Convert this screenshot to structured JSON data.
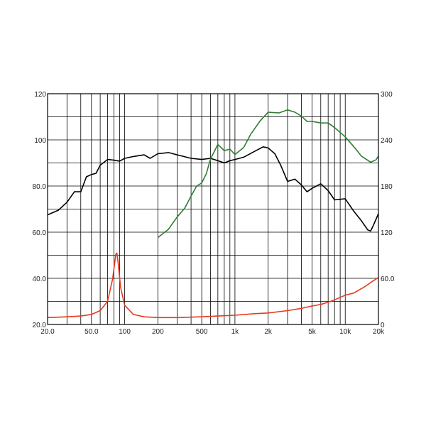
{
  "chart_data": {
    "type": "line",
    "title": "",
    "xlabel": "",
    "ylabel": "",
    "x_scale": "log",
    "xlim": [
      20,
      20000
    ],
    "ylim": [
      20,
      120
    ],
    "y2lim": [
      0,
      300
    ],
    "grid": true,
    "x_tick_labels": [
      {
        "value": 20,
        "label": "20.0"
      },
      {
        "value": 50,
        "label": "50.0"
      },
      {
        "value": 100,
        "label": "100"
      },
      {
        "value": 200,
        "label": "200"
      },
      {
        "value": 500,
        "label": "500"
      },
      {
        "value": 1000,
        "label": "1k"
      },
      {
        "value": 2000,
        "label": "2k"
      },
      {
        "value": 5000,
        "label": "5k"
      },
      {
        "value": 10000,
        "label": "10k"
      },
      {
        "value": 20000,
        "label": "20k"
      }
    ],
    "y_tick_labels": [
      {
        "value": 20,
        "label": "20.0"
      },
      {
        "value": 40,
        "label": "40.0"
      },
      {
        "value": 60,
        "label": "60.0"
      },
      {
        "value": 80,
        "label": "80.0"
      },
      {
        "value": 100,
        "label": "100"
      },
      {
        "value": 120,
        "label": "120"
      }
    ],
    "y2_tick_labels": [
      {
        "value": 0,
        "label": "0"
      },
      {
        "value": 60,
        "label": "60.0"
      },
      {
        "value": 120,
        "label": "120"
      },
      {
        "value": 180,
        "label": "180"
      },
      {
        "value": 240,
        "label": "240"
      },
      {
        "value": 300,
        "label": "300"
      }
    ],
    "series": [
      {
        "color": "#000000",
        "axis": "left",
        "points": [
          [
            20,
            67.5
          ],
          [
            25,
            69.5
          ],
          [
            30,
            73
          ],
          [
            35,
            77.5
          ],
          [
            40,
            77.5
          ],
          [
            45,
            84
          ],
          [
            50,
            85
          ],
          [
            55,
            85.5
          ],
          [
            60,
            89
          ],
          [
            70,
            91.5
          ],
          [
            80,
            91.2
          ],
          [
            90,
            90.8
          ],
          [
            100,
            92
          ],
          [
            120,
            92.8
          ],
          [
            150,
            93.5
          ],
          [
            170,
            92
          ],
          [
            200,
            94
          ],
          [
            250,
            94.5
          ],
          [
            300,
            93.5
          ],
          [
            400,
            92
          ],
          [
            500,
            91.5
          ],
          [
            600,
            92
          ],
          [
            700,
            91
          ],
          [
            800,
            90
          ],
          [
            900,
            91
          ],
          [
            1000,
            91.5
          ],
          [
            1200,
            92.5
          ],
          [
            1500,
            95
          ],
          [
            1800,
            97
          ],
          [
            2000,
            96.5
          ],
          [
            2300,
            94
          ],
          [
            2600,
            89
          ],
          [
            3000,
            82
          ],
          [
            3500,
            83
          ],
          [
            4000,
            80.5
          ],
          [
            4500,
            77.5
          ],
          [
            5000,
            79
          ],
          [
            6000,
            81
          ],
          [
            7000,
            78
          ],
          [
            8000,
            74
          ],
          [
            10000,
            74.5
          ],
          [
            12000,
            69
          ],
          [
            14000,
            65
          ],
          [
            16000,
            61
          ],
          [
            17000,
            60.5
          ],
          [
            18000,
            63
          ],
          [
            20000,
            68
          ]
        ]
      },
      {
        "color": "#2e7d32",
        "axis": "right",
        "points": [
          [
            200,
            113
          ],
          [
            250,
            124
          ],
          [
            300,
            140
          ],
          [
            350,
            151
          ],
          [
            400,
            167
          ],
          [
            450,
            180
          ],
          [
            500,
            184
          ],
          [
            550,
            196
          ],
          [
            600,
            215
          ],
          [
            700,
            234
          ],
          [
            800,
            226
          ],
          [
            900,
            228
          ],
          [
            1000,
            221
          ],
          [
            1200,
            230
          ],
          [
            1400,
            248
          ],
          [
            1700,
            265
          ],
          [
            2000,
            276
          ],
          [
            2500,
            275
          ],
          [
            3000,
            279
          ],
          [
            3500,
            276
          ],
          [
            4000,
            271
          ],
          [
            4500,
            264
          ],
          [
            5000,
            264
          ],
          [
            6000,
            262
          ],
          [
            7000,
            262
          ],
          [
            8000,
            256
          ],
          [
            10000,
            244
          ],
          [
            12000,
            231
          ],
          [
            14000,
            219
          ],
          [
            17000,
            211
          ],
          [
            19000,
            214
          ],
          [
            20000,
            219
          ]
        ]
      },
      {
        "color": "#e8391e",
        "axis": "right",
        "points": [
          [
            20,
            9
          ],
          [
            30,
            10
          ],
          [
            40,
            11
          ],
          [
            50,
            13
          ],
          [
            60,
            18
          ],
          [
            70,
            30
          ],
          [
            78,
            60
          ],
          [
            83,
            91
          ],
          [
            85,
            93
          ],
          [
            87,
            82
          ],
          [
            92,
            48
          ],
          [
            100,
            25
          ],
          [
            120,
            13
          ],
          [
            150,
            10
          ],
          [
            200,
            9
          ],
          [
            300,
            9
          ],
          [
            500,
            10
          ],
          [
            700,
            11
          ],
          [
            1000,
            12
          ],
          [
            1500,
            14
          ],
          [
            2000,
            15
          ],
          [
            3000,
            18
          ],
          [
            4000,
            21
          ],
          [
            5000,
            24
          ],
          [
            6000,
            26
          ],
          [
            7000,
            29
          ],
          [
            8000,
            32
          ],
          [
            10000,
            38
          ],
          [
            12000,
            41
          ],
          [
            15000,
            49
          ],
          [
            18000,
            57
          ],
          [
            20000,
            61
          ]
        ]
      }
    ]
  }
}
